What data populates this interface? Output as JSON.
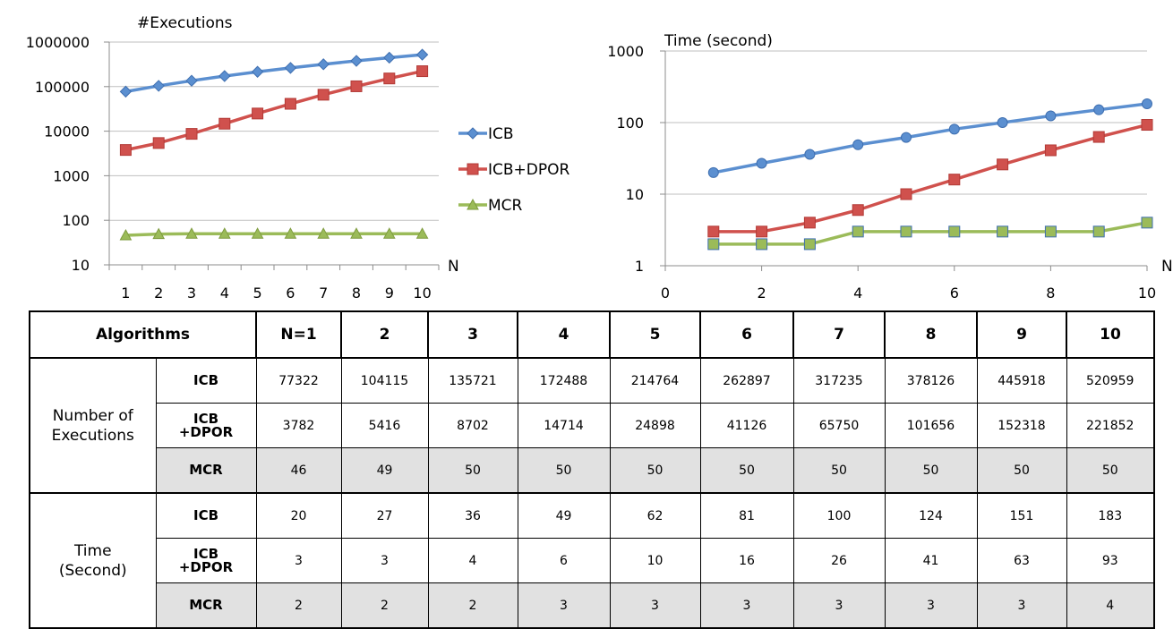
{
  "chart_data": [
    {
      "type": "line",
      "ylabel": "#Executions",
      "xlabel": "N",
      "yscale": "log",
      "ylim": [
        10,
        1000000
      ],
      "yticks": [
        "10",
        "100",
        "1000",
        "10000",
        "100000",
        "1000000"
      ],
      "categories": [
        "1",
        "2",
        "3",
        "4",
        "5",
        "6",
        "7",
        "8",
        "9",
        "10"
      ],
      "legend": "right",
      "grid": true,
      "series": [
        {
          "name": "ICB",
          "color": "#5b8fd0",
          "marker": "diamond",
          "values": [
            77322,
            104115,
            135721,
            172488,
            214764,
            262897,
            317235,
            378126,
            445918,
            520959
          ]
        },
        {
          "name": "ICB+DPOR",
          "color": "#d0514d",
          "marker": "square",
          "values": [
            3782,
            5416,
            8702,
            14714,
            24898,
            41126,
            65750,
            101656,
            152318,
            221852
          ]
        },
        {
          "name": "MCR",
          "color": "#9bbb59",
          "marker": "triangle",
          "values": [
            46,
            49,
            50,
            50,
            50,
            50,
            50,
            50,
            50,
            50
          ]
        }
      ]
    },
    {
      "type": "line",
      "ylabel": "Time (second)",
      "xlabel": "N",
      "yscale": "log",
      "ylim": [
        1,
        1000
      ],
      "yticks": [
        "1",
        "10",
        "100",
        "1000"
      ],
      "xlim": [
        0,
        10
      ],
      "xticks": [
        "0",
        "2",
        "4",
        "6",
        "8",
        "10"
      ],
      "x": [
        1,
        2,
        3,
        4,
        5,
        6,
        7,
        8,
        9,
        10
      ],
      "grid": true,
      "series": [
        {
          "color": "#5b8fd0",
          "marker": "circle",
          "values": [
            20,
            27,
            36,
            49,
            62,
            81,
            100,
            124,
            151,
            183
          ]
        },
        {
          "color": "#d0514d",
          "marker": "square",
          "values": [
            3,
            3,
            4,
            6,
            10,
            16,
            26,
            41,
            63,
            93
          ]
        },
        {
          "color": "#9bbb59",
          "marker": "square",
          "values": [
            2,
            2,
            2,
            3,
            3,
            3,
            3,
            3,
            3,
            4
          ]
        }
      ]
    }
  ],
  "table": {
    "header": [
      "Algorithms",
      "N=1",
      "2",
      "3",
      "4",
      "5",
      "6",
      "7",
      "8",
      "9",
      "10"
    ],
    "groups": [
      {
        "label_line1": "Number of",
        "label_line2": "Executions",
        "rows": [
          {
            "alg_line1": "ICB",
            "alg_line2": "",
            "values": [
              "77322",
              "104115",
              "135721",
              "172488",
              "214764",
              "262897",
              "317235",
              "378126",
              "445918",
              "520959"
            ]
          },
          {
            "alg_line1": "ICB",
            "alg_line2": "+DPOR",
            "values": [
              "3782",
              "5416",
              "8702",
              "14714",
              "24898",
              "41126",
              "65750",
              "101656",
              "152318",
              "221852"
            ]
          },
          {
            "alg_line1": "MCR",
            "alg_line2": "",
            "values": [
              "46",
              "49",
              "50",
              "50",
              "50",
              "50",
              "50",
              "50",
              "50",
              "50"
            ]
          }
        ]
      },
      {
        "label_line1": "Time",
        "label_line2": "(Second)",
        "rows": [
          {
            "alg_line1": "ICB",
            "alg_line2": "",
            "values": [
              "20",
              "27",
              "36",
              "49",
              "62",
              "81",
              "100",
              "124",
              "151",
              "183"
            ]
          },
          {
            "alg_line1": "ICB",
            "alg_line2": "+DPOR",
            "values": [
              "3",
              "3",
              "4",
              "6",
              "10",
              "16",
              "26",
              "41",
              "63",
              "93"
            ]
          },
          {
            "alg_line1": "MCR",
            "alg_line2": "",
            "values": [
              "2",
              "2",
              "2",
              "3",
              "3",
              "3",
              "3",
              "3",
              "3",
              "4"
            ]
          }
        ]
      }
    ]
  }
}
